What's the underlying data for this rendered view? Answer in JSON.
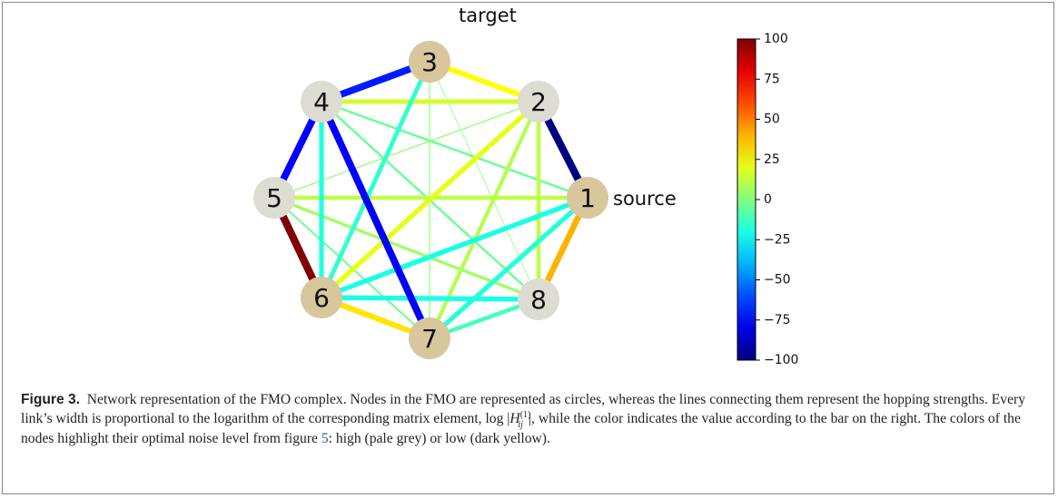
{
  "figure": {
    "nodes": [
      {
        "label": "1",
        "noise": "low"
      },
      {
        "label": "2",
        "noise": "high"
      },
      {
        "label": "3",
        "noise": "low"
      },
      {
        "label": "4",
        "noise": "high"
      },
      {
        "label": "5",
        "noise": "high"
      },
      {
        "label": "6",
        "noise": "low"
      },
      {
        "label": "7",
        "noise": "low"
      },
      {
        "label": "8",
        "noise": "high"
      }
    ],
    "node_colors": {
      "high": "#dcdcd2",
      "low": "#d8c69c"
    },
    "annotations": [
      {
        "node": 2,
        "text": "target"
      },
      {
        "node": 0,
        "text": "source"
      }
    ],
    "edges": [
      {
        "source": 2,
        "target": 6,
        "value": 2
      },
      {
        "source": 2,
        "target": 7,
        "value": 1
      },
      {
        "source": 3,
        "target": 0,
        "value": -4
      },
      {
        "source": 3,
        "target": 7,
        "value": -4
      },
      {
        "source": 1,
        "target": 4,
        "value": 2
      },
      {
        "source": 4,
        "target": 7,
        "value": 6
      },
      {
        "source": 4,
        "target": 6,
        "value": -3
      },
      {
        "source": 3,
        "target": 1,
        "value": 16
      },
      {
        "source": 1,
        "target": 6,
        "value": 10
      },
      {
        "source": 1,
        "target": 7,
        "value": 12
      },
      {
        "source": 4,
        "target": 0,
        "value": 12
      },
      {
        "source": 3,
        "target": 5,
        "value": -18
      },
      {
        "source": 2,
        "target": 5,
        "value": -15
      },
      {
        "source": 1,
        "target": 5,
        "value": 20
      },
      {
        "source": 5,
        "target": 0,
        "value": -20
      },
      {
        "source": 5,
        "target": 7,
        "value": -20
      },
      {
        "source": 6,
        "target": 0,
        "value": -18
      },
      {
        "source": 7,
        "target": 6,
        "value": -12
      },
      {
        "source": 2,
        "target": 1,
        "value": 25
      },
      {
        "source": 2,
        "target": 3,
        "value": -70
      },
      {
        "source": 1,
        "target": 0,
        "value": -100
      },
      {
        "source": 0,
        "target": 7,
        "value": 40
      },
      {
        "source": 6,
        "target": 5,
        "value": 30
      },
      {
        "source": 5,
        "target": 4,
        "value": 100
      },
      {
        "source": 4,
        "target": 3,
        "value": -75
      },
      {
        "source": 3,
        "target": 6,
        "value": -75
      }
    ],
    "colorbar": {
      "range": [
        -100,
        100
      ],
      "ticks": [
        100,
        75,
        50,
        25,
        0,
        {
          "value": -25,
          "label": "−25"
        },
        {
          "value": -50,
          "label": "−50"
        },
        {
          "value": -75,
          "label": "−75"
        },
        {
          "value": -100,
          "label": "−100"
        }
      ]
    },
    "caption": {
      "label": "Figure 3.",
      "text1": "Network representation of the FMO complex. Nodes in the FMO are represented as circles, whereas the lines connecting them represent the hopping strengths. Every link’s width is proportional to the logarithm of the corresponding matrix element, ",
      "math": {
        "prefix": "log |",
        "symbol": "H",
        "sub": "ij",
        "sup": "(1)",
        "suffix": "|"
      },
      "text2": ", while the color indicates the value according to the bar on the right. The colors of the nodes highlight their optimal noise level from figure ",
      "ref": "5",
      "text3": ": high (pale grey) or low (dark yellow)."
    }
  }
}
